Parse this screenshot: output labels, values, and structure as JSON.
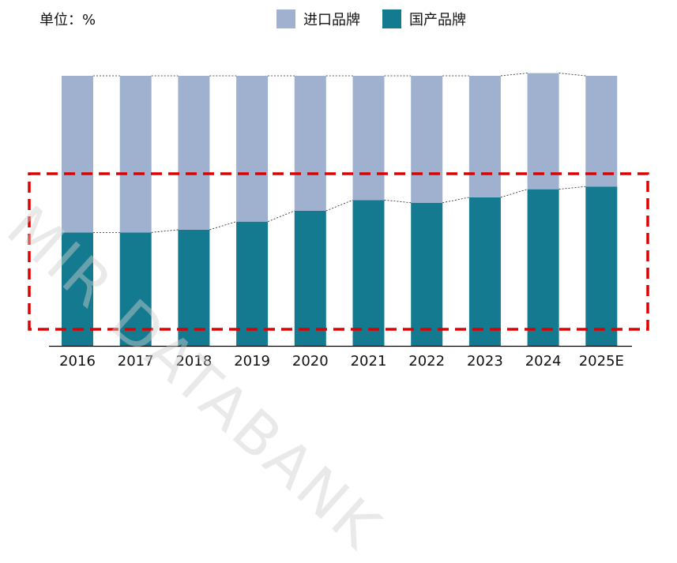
{
  "unit_label": "单位：%",
  "watermark": "MIR DATABANK",
  "colors": {
    "imported": "#9fb1cf",
    "domestic": "#137a90",
    "highlight": "#e00000",
    "axis": "#000000"
  },
  "chart_data": {
    "type": "bar",
    "stacked": true,
    "categories": [
      "2016",
      "2017",
      "2018",
      "2019",
      "2020",
      "2021",
      "2022",
      "2023",
      "2024",
      "2025E"
    ],
    "series": [
      {
        "name": "国产品牌",
        "values": [
          42,
          42,
          43,
          46,
          50,
          54,
          53,
          55,
          58,
          59
        ]
      },
      {
        "name": "进口品牌",
        "values": [
          58,
          58,
          57,
          54,
          50,
          46,
          47,
          45,
          43,
          41
        ]
      }
    ],
    "ylim": [
      0,
      100
    ],
    "legend_position": "top-center",
    "annotations": [
      "red dashed highlight box around domestic brand share"
    ]
  }
}
